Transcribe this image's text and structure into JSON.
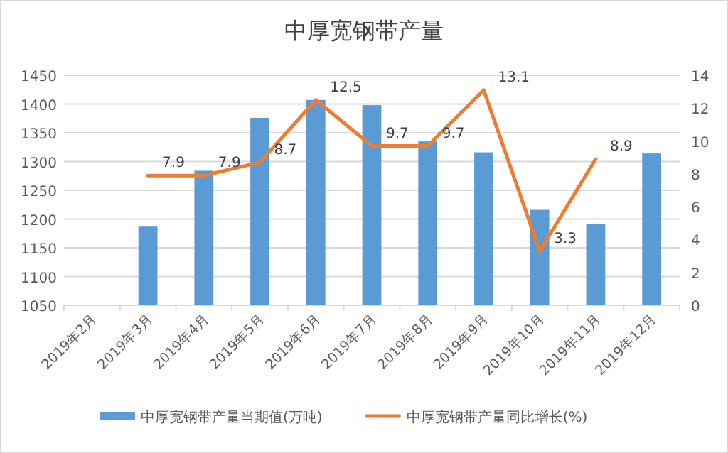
{
  "chart_data": {
    "type": "bar",
    "title": "中厚宽钢带产量",
    "categories": [
      "2019年2月",
      "2019年3月",
      "2019年4月",
      "2019年5月",
      "2019年6月",
      "2019年7月",
      "2019年8月",
      "2019年9月",
      "2019年10月",
      "2019年11月",
      "2019年12月"
    ],
    "series": [
      {
        "name": "中厚宽钢带产量当期值(万吨)",
        "color": "#5b9bd5",
        "values": [
          null,
          1188,
          1284,
          1376,
          1407,
          1398,
          1335,
          1316,
          1216,
          1191,
          1314
        ]
      },
      {
        "name": "中厚宽钢带产量同比增长(%)",
        "type": "line",
        "axis": "y2",
        "color": "#ed7d31",
        "values": [
          null,
          7.9,
          7.9,
          8.7,
          12.5,
          9.7,
          9.7,
          13.1,
          3.3,
          8.9,
          null
        ],
        "value_labels": [
          null,
          "7.9",
          "7.9",
          "8.7",
          "12.5",
          "9.7",
          "9.7",
          "13.1",
          "3.3",
          "8.9",
          null
        ]
      }
    ],
    "ylim": [
      1050,
      1450
    ],
    "yticks": [
      1050,
      1100,
      1150,
      1200,
      1250,
      1300,
      1350,
      1400,
      1450
    ],
    "y2lim": [
      0,
      14
    ],
    "y2ticks": [
      0,
      2,
      4,
      6,
      8,
      10,
      12,
      14
    ],
    "grid": "y",
    "legend": "bottom"
  }
}
